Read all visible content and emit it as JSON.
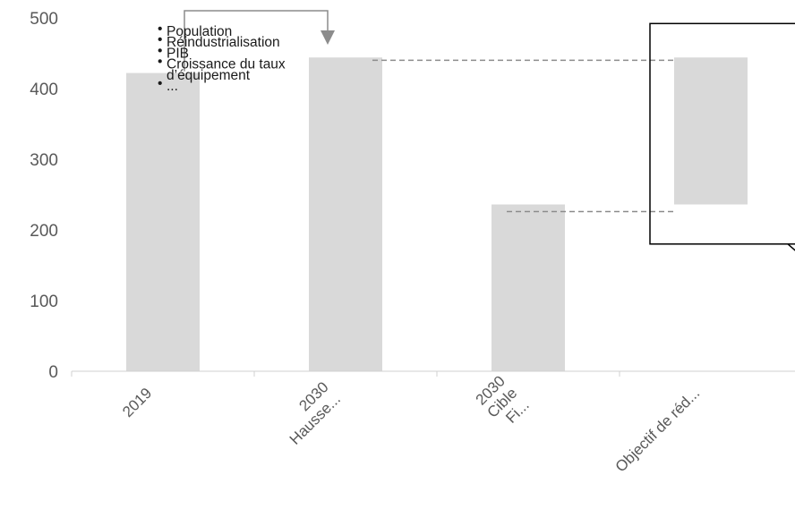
{
  "chart_data": {
    "type": "bar",
    "subtype": "waterfall",
    "ylim": [
      0,
      500
    ],
    "yticks": [
      0,
      100,
      200,
      300,
      400,
      500
    ],
    "grid": false,
    "categories": [
      [
        "2019"
      ],
      [
        "2030",
        "Hausse..."
      ],
      [
        "2030",
        "Cible",
        "Fi..."
      ],
      [
        "Objectif de réd..."
      ]
    ],
    "bars": [
      {
        "base": 0,
        "top": 422
      },
      {
        "base": 0,
        "top": 444
      },
      {
        "base": 0,
        "top": 236
      },
      {
        "base": 236,
        "top": 444
      }
    ],
    "bar_color": "#d9d9d9",
    "annotation_lines": [
      "Population",
      "Réindustrialisation",
      "PIB",
      "Croissance du taux",
      "d’équipement",
      "..."
    ],
    "bullet_lines": [
      0,
      1,
      2,
      3,
      5
    ]
  }
}
